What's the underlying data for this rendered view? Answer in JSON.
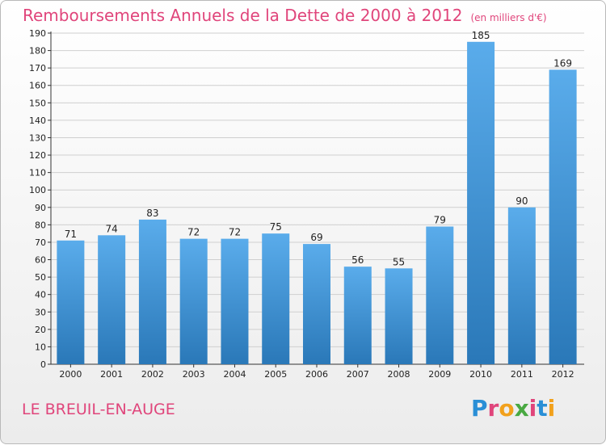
{
  "page": {
    "title": "Remboursements Annuels de la Dette de 2000 à 2012",
    "unit": "(en milliers d'€)",
    "commune": "LE BREUIL-EN-AUGE",
    "logo_text": "Proxiti"
  },
  "colors": {
    "title": "#e0457b",
    "bar_light": "#5aaceb",
    "bar_dark": "#2a78b8",
    "grid": "#cfcfcf",
    "axis": "#333333",
    "label": "#222222"
  },
  "chart_data": {
    "type": "bar",
    "title": "Remboursements Annuels de la Dette de 2000 à 2012",
    "categories": [
      "2000",
      "2001",
      "2002",
      "2003",
      "2004",
      "2005",
      "2006",
      "2007",
      "2008",
      "2009",
      "2010",
      "2011",
      "2012"
    ],
    "values": [
      71,
      74,
      83,
      72,
      72,
      75,
      69,
      56,
      55,
      79,
      185,
      90,
      169
    ],
    "ylim": [
      0,
      190
    ],
    "ytick_step": 10,
    "grid": true,
    "data_labels": true
  }
}
